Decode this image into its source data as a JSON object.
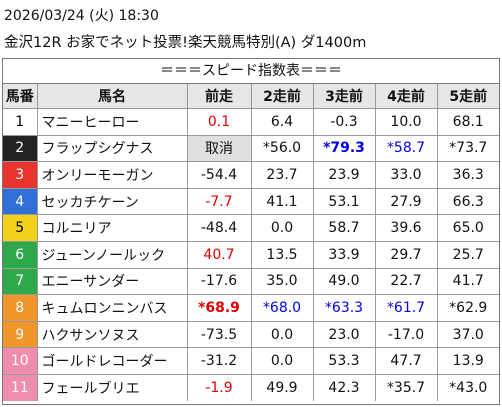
{
  "header": {
    "date": "2026/03/24 (火) 18:30",
    "race": "金沢12R お家でネット投票!楽天競馬特別(A) ダ1400m"
  },
  "table": {
    "title": "＝＝＝スピード指数表＝＝＝",
    "columns": [
      "馬番",
      "馬名",
      "前走",
      "2走前",
      "3走前",
      "4走前",
      "5走前"
    ],
    "rows": [
      {
        "num": "1",
        "name": "マニーヒーロー",
        "bracket_color": "#ffffff",
        "num_color": "#000000",
        "cells": [
          {
            "text": "0.1",
            "color": "#e00000"
          },
          {
            "text": "6.4"
          },
          {
            "text": "-0.3"
          },
          {
            "text": "10.0"
          },
          {
            "text": "68.1"
          }
        ]
      },
      {
        "num": "2",
        "name": "フラップシグナス",
        "bracket_color": "#222222",
        "num_color": "#ffffff",
        "cells": [
          {
            "text": "取消",
            "background": "#e0e0e0"
          },
          {
            "text": "*56.0"
          },
          {
            "text": "*79.3",
            "color": "#0000ee",
            "bold": true
          },
          {
            "text": "*58.7",
            "color": "#0000ee"
          },
          {
            "text": "*73.7"
          }
        ]
      },
      {
        "num": "3",
        "name": "オンリーモーガン",
        "bracket_color": "#e8342c",
        "num_color": "#ffffff",
        "cells": [
          {
            "text": "-54.4"
          },
          {
            "text": "23.7"
          },
          {
            "text": "23.9"
          },
          {
            "text": "33.0"
          },
          {
            "text": "36.3"
          }
        ]
      },
      {
        "num": "4",
        "name": "セッカチケーン",
        "bracket_color": "#2f6fd6",
        "num_color": "#ffffff",
        "cells": [
          {
            "text": "-7.7",
            "color": "#e00000"
          },
          {
            "text": "41.1"
          },
          {
            "text": "53.1"
          },
          {
            "text": "27.9"
          },
          {
            "text": "66.3"
          }
        ]
      },
      {
        "num": "5",
        "name": "コルニリア",
        "bracket_color": "#f2d21b",
        "num_color": "#000000",
        "cells": [
          {
            "text": "-48.4"
          },
          {
            "text": "0.0"
          },
          {
            "text": "58.7"
          },
          {
            "text": "39.6"
          },
          {
            "text": "65.0"
          }
        ]
      },
      {
        "num": "6",
        "name": "ジューンノールック",
        "bracket_color": "#2ea84a",
        "num_color": "#ffffff",
        "cells": [
          {
            "text": "40.7",
            "color": "#e00000"
          },
          {
            "text": "13.5"
          },
          {
            "text": "33.9"
          },
          {
            "text": "29.7"
          },
          {
            "text": "25.7"
          }
        ]
      },
      {
        "num": "7",
        "name": "エニーサンダー",
        "bracket_color": "#2ea84a",
        "num_color": "#ffffff",
        "cells": [
          {
            "text": "-17.6"
          },
          {
            "text": "35.0"
          },
          {
            "text": "49.0"
          },
          {
            "text": "22.7"
          },
          {
            "text": "41.7"
          }
        ]
      },
      {
        "num": "8",
        "name": "キュムロンニンバス",
        "bracket_color": "#f0962a",
        "num_color": "#ffffff",
        "cells": [
          {
            "text": "*68.9",
            "color": "#e00000",
            "bold": true
          },
          {
            "text": "*68.0",
            "color": "#0000ee"
          },
          {
            "text": "*63.3",
            "color": "#0000ee"
          },
          {
            "text": "*61.7",
            "color": "#0000ee"
          },
          {
            "text": "*62.9"
          }
        ]
      },
      {
        "num": "9",
        "name": "ハクサンソヌス",
        "bracket_color": "#f0962a",
        "num_color": "#ffffff",
        "cells": [
          {
            "text": "-73.5"
          },
          {
            "text": "0.0"
          },
          {
            "text": "23.0"
          },
          {
            "text": "-17.0"
          },
          {
            "text": "37.0"
          }
        ]
      },
      {
        "num": "10",
        "name": "ゴールドレコーダー",
        "bracket_color": "#f08cad",
        "num_color": "#ffffff",
        "cells": [
          {
            "text": "-31.2"
          },
          {
            "text": "0.0"
          },
          {
            "text": "53.3"
          },
          {
            "text": "47.7"
          },
          {
            "text": "13.9"
          }
        ]
      },
      {
        "num": "11",
        "name": "フェールブリエ",
        "bracket_color": "#f08cad",
        "num_color": "#ffffff",
        "cells": [
          {
            "text": "-1.9",
            "color": "#e00000"
          },
          {
            "text": "49.9"
          },
          {
            "text": "42.3"
          },
          {
            "text": "*35.7"
          },
          {
            "text": "*43.0"
          }
        ]
      }
    ]
  }
}
